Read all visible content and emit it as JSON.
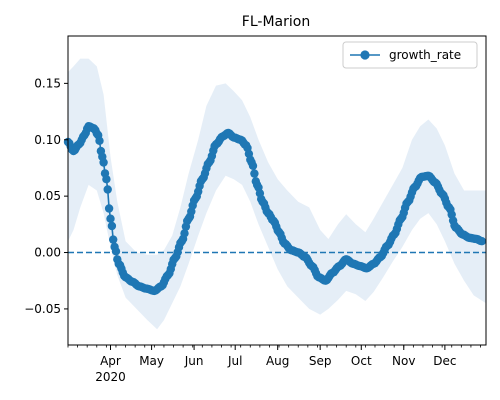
{
  "chart_data": {
    "type": "line",
    "title": "FL-Marion",
    "xlabel": "",
    "ylabel": "",
    "x_start": "2020-03-01",
    "x_end": "2020-12-31",
    "x_ticks": [
      {
        "date": "2020-04-01",
        "label": "Apr",
        "sublabel": "2020"
      },
      {
        "date": "2020-05-01",
        "label": "May"
      },
      {
        "date": "2020-06-01",
        "label": "Jun"
      },
      {
        "date": "2020-07-01",
        "label": "Jul"
      },
      {
        "date": "2020-08-01",
        "label": "Aug"
      },
      {
        "date": "2020-09-01",
        "label": "Sep"
      },
      {
        "date": "2020-10-01",
        "label": "Oct"
      },
      {
        "date": "2020-11-01",
        "label": "Nov"
      },
      {
        "date": "2020-12-01",
        "label": "Dec"
      }
    ],
    "y_ticks": [
      -0.05,
      0.0,
      0.05,
      0.1,
      0.15
    ],
    "y_tick_labels": [
      "−0.05",
      "0.00",
      "0.05",
      "0.10",
      "0.15"
    ],
    "ylim": [
      -0.082,
      0.192
    ],
    "reference_line": {
      "y": 0.0,
      "style": "dashed",
      "color": "#1f77b4"
    },
    "legend": {
      "position": "top-right",
      "entries": [
        "growth_rate"
      ]
    },
    "colors": {
      "line": "#1f77b4",
      "band": "#dce8f4"
    },
    "series": [
      {
        "name": "growth_rate",
        "points": [
          [
            "2020-03-01",
            0.098
          ],
          [
            "2020-03-05",
            0.09
          ],
          [
            "2020-03-09",
            0.096
          ],
          [
            "2020-03-13",
            0.104
          ],
          [
            "2020-03-16",
            0.112
          ],
          [
            "2020-03-20",
            0.11
          ],
          [
            "2020-03-23",
            0.104
          ],
          [
            "2020-03-26",
            0.085
          ],
          [
            "2020-03-29",
            0.065
          ],
          [
            "2020-04-01",
            0.03
          ],
          [
            "2020-04-04",
            0.005
          ],
          [
            "2020-04-07",
            -0.01
          ],
          [
            "2020-04-12",
            -0.022
          ],
          [
            "2020-04-17",
            -0.026
          ],
          [
            "2020-04-22",
            -0.03
          ],
          [
            "2020-04-27",
            -0.032
          ],
          [
            "2020-05-03",
            -0.034
          ],
          [
            "2020-05-08",
            -0.03
          ],
          [
            "2020-05-13",
            -0.02
          ],
          [
            "2020-05-18",
            -0.005
          ],
          [
            "2020-05-23",
            0.01
          ],
          [
            "2020-05-28",
            0.03
          ],
          [
            "2020-06-02",
            0.048
          ],
          [
            "2020-06-07",
            0.065
          ],
          [
            "2020-06-12",
            0.08
          ],
          [
            "2020-06-17",
            0.096
          ],
          [
            "2020-06-22",
            0.103
          ],
          [
            "2020-06-26",
            0.106
          ],
          [
            "2020-06-30",
            0.102
          ],
          [
            "2020-07-05",
            0.1
          ],
          [
            "2020-07-09",
            0.095
          ],
          [
            "2020-07-13",
            0.08
          ],
          [
            "2020-07-17",
            0.06
          ],
          [
            "2020-07-21",
            0.045
          ],
          [
            "2020-07-25",
            0.035
          ],
          [
            "2020-07-29",
            0.028
          ],
          [
            "2020-08-02",
            0.018
          ],
          [
            "2020-08-06",
            0.008
          ],
          [
            "2020-08-11",
            0.002
          ],
          [
            "2020-08-16",
            0.0
          ],
          [
            "2020-08-21",
            -0.004
          ],
          [
            "2020-08-26",
            -0.012
          ],
          [
            "2020-08-31",
            -0.022
          ],
          [
            "2020-09-05",
            -0.025
          ],
          [
            "2020-09-10",
            -0.018
          ],
          [
            "2020-09-15",
            -0.012
          ],
          [
            "2020-09-20",
            -0.006
          ],
          [
            "2020-09-25",
            -0.01
          ],
          [
            "2020-09-30",
            -0.012
          ],
          [
            "2020-10-05",
            -0.014
          ],
          [
            "2020-10-10",
            -0.01
          ],
          [
            "2020-10-15",
            -0.004
          ],
          [
            "2020-10-20",
            0.006
          ],
          [
            "2020-10-25",
            0.016
          ],
          [
            "2020-10-30",
            0.03
          ],
          [
            "2020-11-04",
            0.045
          ],
          [
            "2020-11-09",
            0.058
          ],
          [
            "2020-11-14",
            0.067
          ],
          [
            "2020-11-19",
            0.068
          ],
          [
            "2020-11-24",
            0.062
          ],
          [
            "2020-11-29",
            0.052
          ],
          [
            "2020-12-04",
            0.04
          ],
          [
            "2020-12-09",
            0.022
          ],
          [
            "2020-12-14",
            0.016
          ],
          [
            "2020-12-19",
            0.013
          ],
          [
            "2020-12-24",
            0.012
          ],
          [
            "2020-12-28",
            0.01
          ]
        ],
        "band": [
          [
            "2020-03-01",
            0.01,
            0.16
          ],
          [
            "2020-03-05",
            0.02,
            0.165
          ],
          [
            "2020-03-10",
            0.04,
            0.172
          ],
          [
            "2020-03-16",
            0.06,
            0.172
          ],
          [
            "2020-03-22",
            0.055,
            0.165
          ],
          [
            "2020-03-27",
            0.035,
            0.14
          ],
          [
            "2020-04-01",
            0.005,
            0.085
          ],
          [
            "2020-04-06",
            -0.02,
            0.045
          ],
          [
            "2020-04-12",
            -0.04,
            0.01
          ],
          [
            "2020-04-20",
            -0.05,
            0.0
          ],
          [
            "2020-04-28",
            -0.06,
            -0.002
          ],
          [
            "2020-05-05",
            -0.068,
            -0.002
          ],
          [
            "2020-05-10",
            -0.06,
            0.002
          ],
          [
            "2020-05-16",
            -0.045,
            0.015
          ],
          [
            "2020-05-22",
            -0.03,
            0.04
          ],
          [
            "2020-05-28",
            -0.01,
            0.07
          ],
          [
            "2020-06-04",
            0.015,
            0.1
          ],
          [
            "2020-06-10",
            0.035,
            0.13
          ],
          [
            "2020-06-17",
            0.055,
            0.148
          ],
          [
            "2020-06-24",
            0.068,
            0.15
          ],
          [
            "2020-06-30",
            0.065,
            0.143
          ],
          [
            "2020-07-06",
            0.06,
            0.135
          ],
          [
            "2020-07-12",
            0.045,
            0.12
          ],
          [
            "2020-07-18",
            0.025,
            0.1
          ],
          [
            "2020-07-25",
            0.005,
            0.08
          ],
          [
            "2020-08-01",
            -0.015,
            0.065
          ],
          [
            "2020-08-08",
            -0.03,
            0.055
          ],
          [
            "2020-08-16",
            -0.04,
            0.045
          ],
          [
            "2020-08-24",
            -0.05,
            0.04
          ],
          [
            "2020-09-01",
            -0.055,
            0.02
          ],
          [
            "2020-09-07",
            -0.05,
            0.012
          ],
          [
            "2020-09-14",
            -0.042,
            0.025
          ],
          [
            "2020-09-20",
            -0.034,
            0.034
          ],
          [
            "2020-09-27",
            -0.037,
            0.025
          ],
          [
            "2020-10-04",
            -0.043,
            0.018
          ],
          [
            "2020-10-10",
            -0.035,
            0.03
          ],
          [
            "2020-10-17",
            -0.022,
            0.045
          ],
          [
            "2020-10-24",
            -0.008,
            0.06
          ],
          [
            "2020-10-31",
            0.005,
            0.075
          ],
          [
            "2020-11-07",
            0.02,
            0.1
          ],
          [
            "2020-11-13",
            0.03,
            0.112
          ],
          [
            "2020-11-19",
            0.035,
            0.118
          ],
          [
            "2020-11-25",
            0.025,
            0.11
          ],
          [
            "2020-12-01",
            0.01,
            0.095
          ],
          [
            "2020-12-08",
            -0.01,
            0.07
          ],
          [
            "2020-12-15",
            -0.025,
            0.055
          ],
          [
            "2020-12-22",
            -0.038,
            0.055
          ],
          [
            "2020-12-31",
            -0.045,
            0.055
          ]
        ]
      }
    ]
  }
}
